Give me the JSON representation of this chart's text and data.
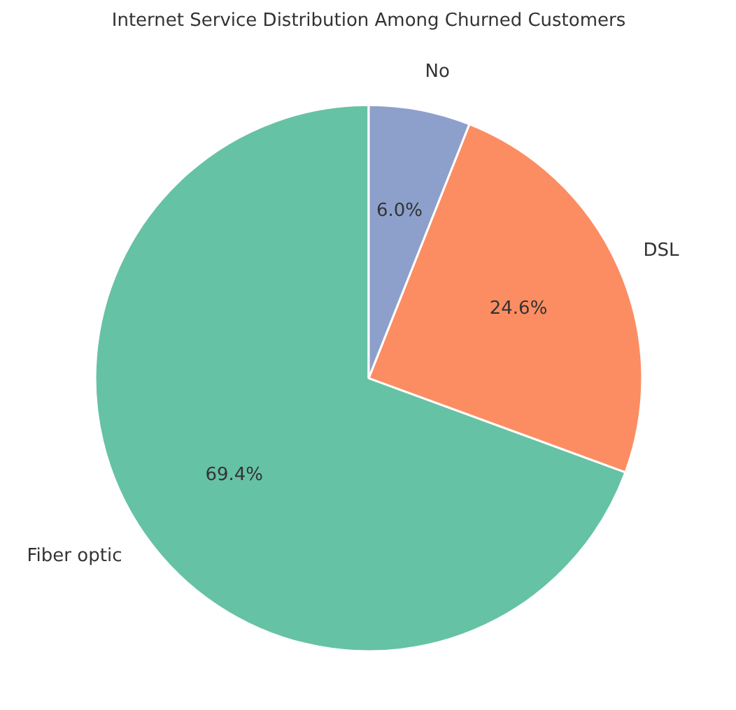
{
  "chart_data": {
    "type": "pie",
    "title": "Internet Service Distribution Among Churned Customers",
    "categories": [
      "Fiber optic",
      "DSL",
      "No"
    ],
    "values": [
      69.4,
      24.6,
      6.0
    ],
    "colors": [
      "#66c2a5",
      "#fc8d62",
      "#8da0cb"
    ],
    "value_labels": [
      "69.4%",
      "24.6%",
      "6.0%"
    ],
    "legend": false
  }
}
